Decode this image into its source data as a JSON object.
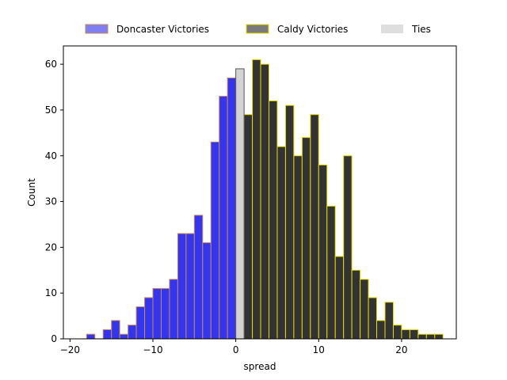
{
  "chart_data": {
    "type": "bar",
    "title": "",
    "xlabel": "spread",
    "ylabel": "Count",
    "xlim": [
      -20.8,
      26.6
    ],
    "ylim": [
      0,
      64
    ],
    "x_ticks": [
      -20,
      -10,
      0,
      10,
      20
    ],
    "y_ticks": [
      0,
      10,
      20,
      30,
      40,
      50,
      60
    ],
    "bin_width": 1,
    "grid": false,
    "legend_position": "top-center",
    "series": [
      {
        "name": "Doncaster Victories",
        "fill": "#3535ee",
        "legend_fill": "#7f7ff2",
        "edge": "#c48a5a",
        "bins": [
          {
            "x": -18,
            "count": 1
          },
          {
            "x": -17,
            "count": 0
          },
          {
            "x": -16,
            "count": 2
          },
          {
            "x": -15,
            "count": 4
          },
          {
            "x": -14,
            "count": 1
          },
          {
            "x": -13,
            "count": 3
          },
          {
            "x": -12,
            "count": 7
          },
          {
            "x": -11,
            "count": 9
          },
          {
            "x": -10,
            "count": 11
          },
          {
            "x": -9,
            "count": 11
          },
          {
            "x": -8,
            "count": 13
          },
          {
            "x": -7,
            "count": 23
          },
          {
            "x": -6,
            "count": 23
          },
          {
            "x": -5,
            "count": 27
          },
          {
            "x": -4,
            "count": 21
          },
          {
            "x": -3,
            "count": 43
          },
          {
            "x": -2,
            "count": 53
          },
          {
            "x": -1,
            "count": 57
          }
        ]
      },
      {
        "name": "Caldy Victories",
        "fill": "#333333",
        "legend_fill": "#7a7a7a",
        "edge": "#e6dc00",
        "bins": [
          {
            "x": 1,
            "count": 49
          },
          {
            "x": 2,
            "count": 61
          },
          {
            "x": 3,
            "count": 60
          },
          {
            "x": 4,
            "count": 52
          },
          {
            "x": 5,
            "count": 42
          },
          {
            "x": 6,
            "count": 51
          },
          {
            "x": 7,
            "count": 40
          },
          {
            "x": 8,
            "count": 44
          },
          {
            "x": 9,
            "count": 49
          },
          {
            "x": 10,
            "count": 38
          },
          {
            "x": 11,
            "count": 29
          },
          {
            "x": 12,
            "count": 18
          },
          {
            "x": 13,
            "count": 40
          },
          {
            "x": 14,
            "count": 15
          },
          {
            "x": 15,
            "count": 13
          },
          {
            "x": 16,
            "count": 9
          },
          {
            "x": 17,
            "count": 4
          },
          {
            "x": 18,
            "count": 8
          },
          {
            "x": 19,
            "count": 3
          },
          {
            "x": 20,
            "count": 2
          },
          {
            "x": 21,
            "count": 2
          },
          {
            "x": 22,
            "count": 1
          },
          {
            "x": 23,
            "count": 1
          },
          {
            "x": 24,
            "count": 1
          }
        ]
      },
      {
        "name": "Ties",
        "fill": "#d3d3d3",
        "legend_fill": "#dedede",
        "edge": "#555555",
        "bins": [
          {
            "x": 0,
            "count": 59
          }
        ]
      }
    ]
  }
}
